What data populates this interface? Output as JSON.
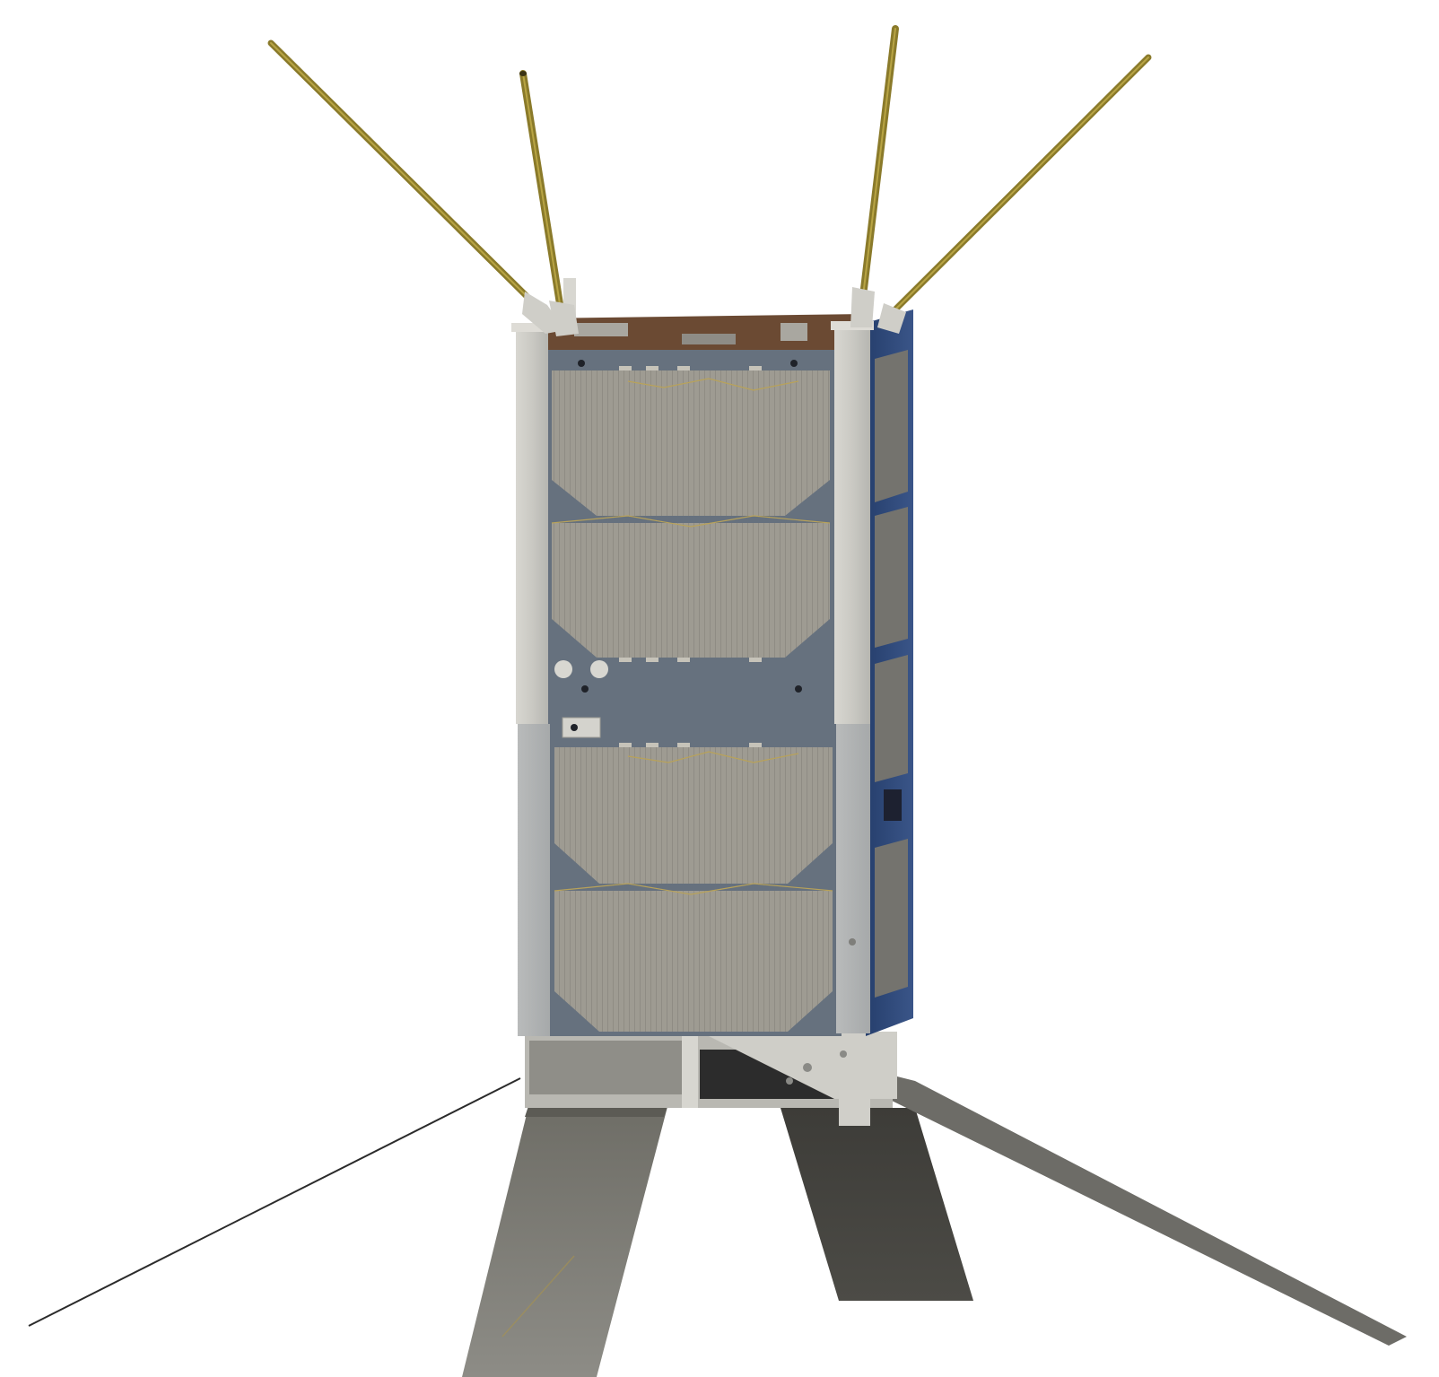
{
  "scene": {
    "subject": "cubesat-render",
    "background_color": "#ffffff"
  },
  "colors": {
    "antenna_gold": "#8a7a2a",
    "antenna_gold_light": "#b8a444",
    "frame_rail": "#c9c8c2",
    "frame_rail_shade": "#a9aaa6",
    "side_panel_blue": "#2f4a78",
    "panel_slate": "#66717e",
    "solar_cell": "#9d9a90",
    "solar_cell_line": "#8d8a82",
    "solar_trace": "#b8a25a",
    "deployed_panel": "#6f6e68",
    "deployed_panel_dark": "#4a4944",
    "tether_dark": "#2b2b2b"
  },
  "icons": {
    "antenna": "gold-rod-antenna",
    "solar_panel": "solar-cell-array",
    "deployable_panel": "deployed-solar-wing"
  }
}
